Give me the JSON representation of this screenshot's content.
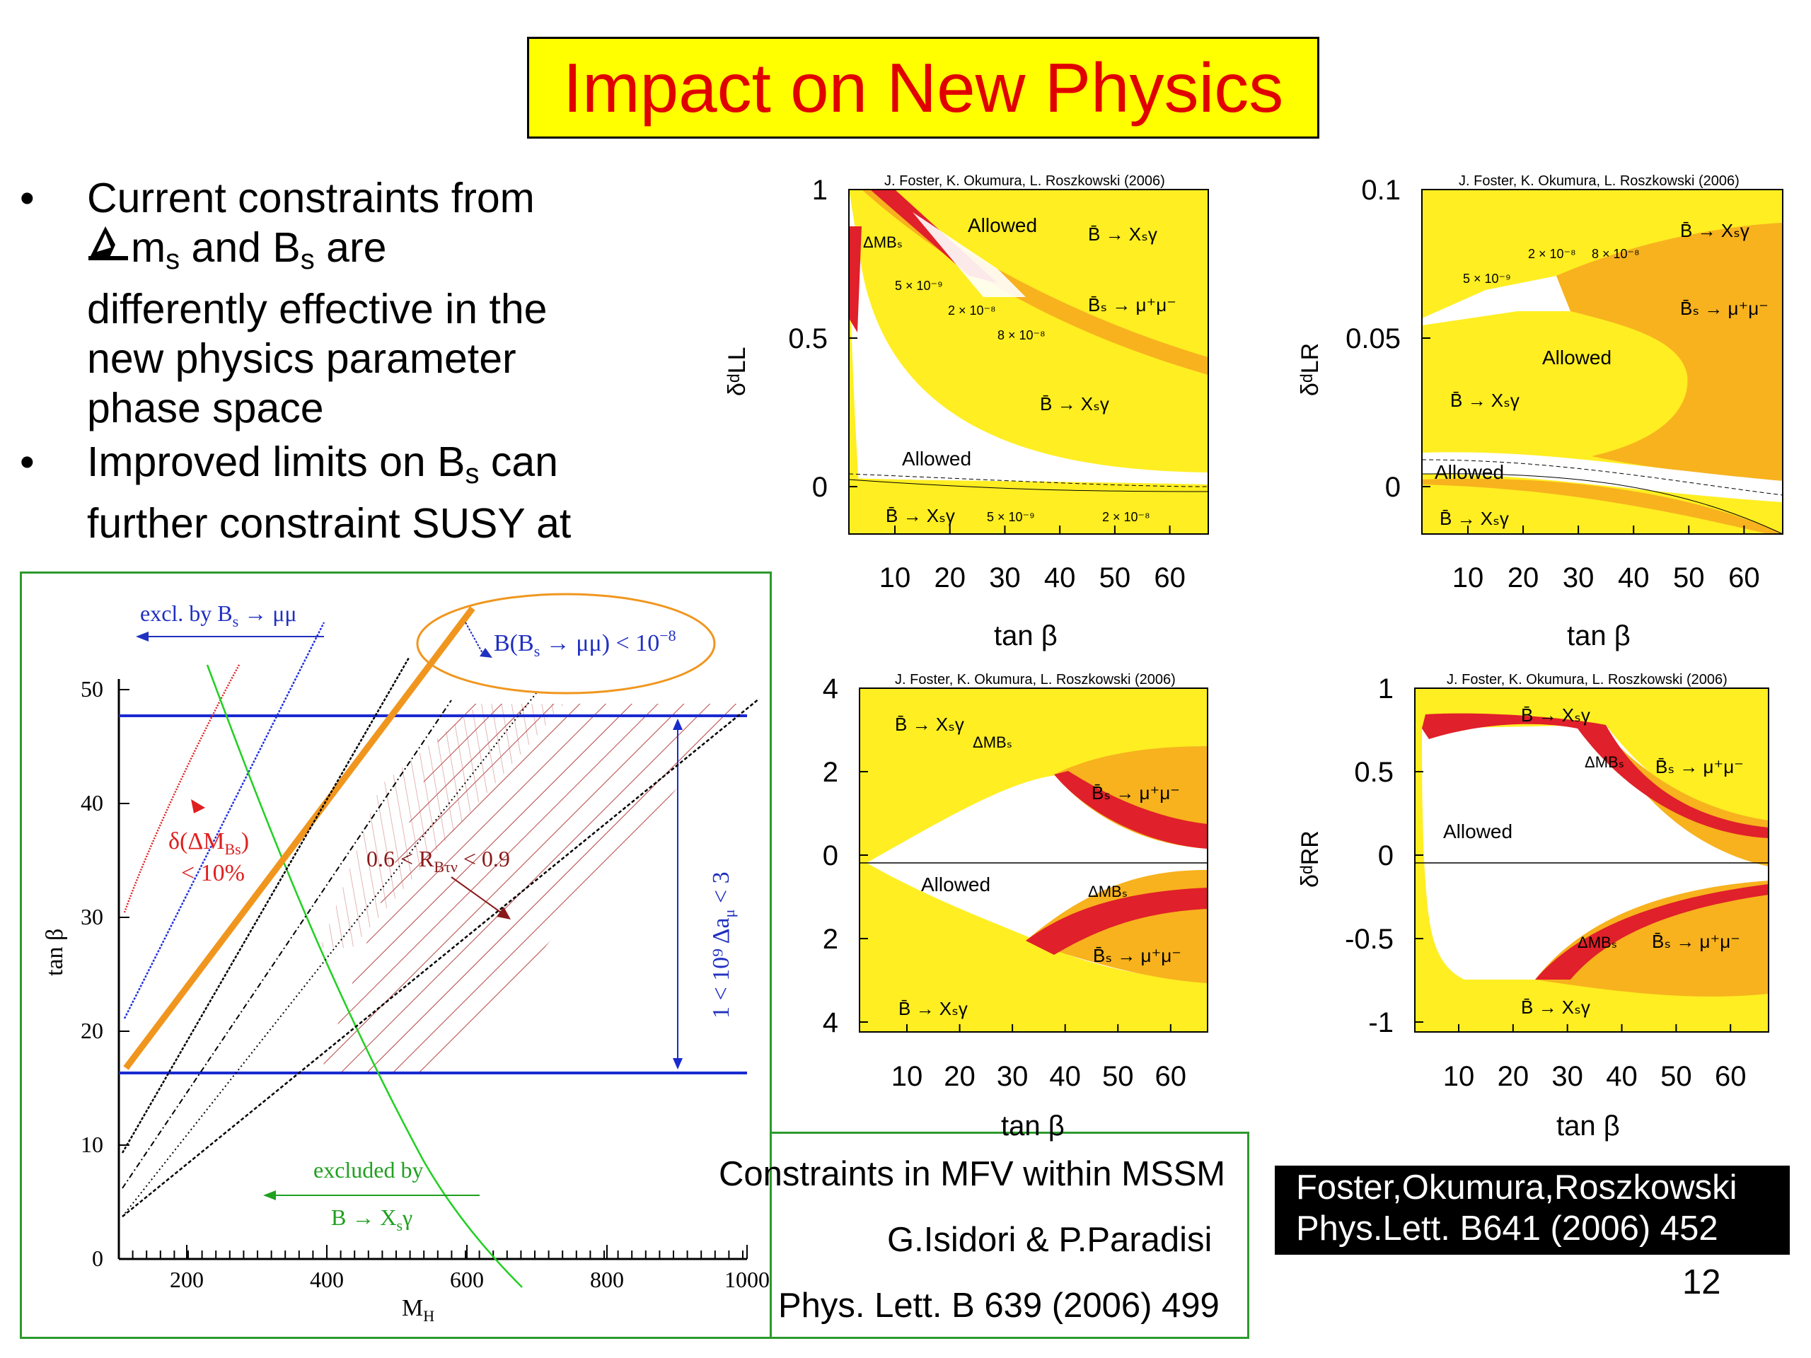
{
  "slide": {
    "title": "Impact on New Physics",
    "page_number": "12",
    "colors": {
      "title_bg": "#ffff00",
      "title_text": "#e00000",
      "allowed_yellow": "#ffee22",
      "orange": "#f7b21e",
      "red": "#e0202a"
    }
  },
  "bullets": [
    {
      "symbol": "•",
      "line1": "Current constraints from",
      "line2_pre": "m",
      "line2_sub": "s",
      "line2_mid": " and B",
      "line2_sub2": "s",
      "line2_glyphs": "",
      "line2_post": " are",
      "line3": "differently effective in the",
      "line4": "new physics parameter",
      "line5": "phase space"
    },
    {
      "symbol": "•",
      "line1_pre": "Improved limits on B",
      "line1_sub": "s",
      "line1_glyphs": "",
      "line1_post": " can",
      "line2": "further constraint SUSY at"
    }
  ],
  "mfv_plot": {
    "xlabel": "M",
    "xlabel_sub": "H",
    "ylabel": "tan β",
    "x_ticks": [
      "200",
      "400",
      "600",
      "800",
      "1000"
    ],
    "y_ticks": [
      "0",
      "10",
      "20",
      "30",
      "40",
      "50"
    ],
    "annotations": {
      "excl_bs_pre": "excl. by B",
      "excl_bs_sub": "s",
      "excl_bs_post": " → μμ",
      "bs_limit_pre": "B(B",
      "bs_limit_sub": "s",
      "bs_limit_post": " → μμ) < 10",
      "bs_limit_exp": "−8",
      "dm_label_1": "δ(ΔM",
      "dm_label_1_sub": "Bs",
      "dm_label_1_post": ")",
      "dm_label_2": "< 10%",
      "rbtv_pre": "0.6 < R",
      "rbtv_sub": "Bτν",
      "rbtv_post": " < 0.9",
      "amu_label": "1 < 10⁹ Δa",
      "amu_sub": "μ",
      "amu_post": " < 3",
      "excl_bsg_1": "excluded by",
      "excl_bsg_2_pre": "B → X",
      "excl_bsg_2_sub": "s",
      "excl_bsg_2_post": "γ"
    }
  },
  "captions": {
    "mfv_title": "Constraints in MFV within MSSM",
    "mfv_authors": "G.Isidori & P.Paradisi",
    "mfv_ref": "Phys. Lett. B 639 (2006) 499",
    "fok_authors": "Foster,Okumura,Roszkowski",
    "fok_ref": "Phys.Lett. B641 (2006) 452"
  },
  "foster_panels": {
    "credit": "J. Foster, K. Okumura, L. Roszkowski (2006)",
    "xlabel": "tan β",
    "x_ticks": [
      "10",
      "20",
      "30",
      "40",
      "50",
      "60"
    ],
    "labels": {
      "allowed": "Allowed",
      "bxsg": "B̄ → Xₛγ",
      "bsmumu": "B̄ₛ → μ⁺μ⁻",
      "dmbs": "ΔMBₛ",
      "e5e9": "5 × 10⁻⁹",
      "e2e8": "2 × 10⁻⁸",
      "e8e8": "8 × 10⁻⁸"
    },
    "ll": {
      "ylabel": "δᵈLL",
      "y_ticks": [
        "1",
        "0.5",
        "0"
      ]
    },
    "lr": {
      "ylabel": "δᵈLR",
      "y_ticks": [
        "0.1",
        "0.05",
        "0"
      ]
    },
    "lower_left": {
      "y_ticks": [
        "4",
        "2",
        "0",
        "2",
        "4"
      ]
    },
    "rr": {
      "ylabel": "δᵈRR",
      "y_ticks": [
        "1",
        "0.5",
        "0",
        "-0.5",
        "-1"
      ]
    }
  }
}
